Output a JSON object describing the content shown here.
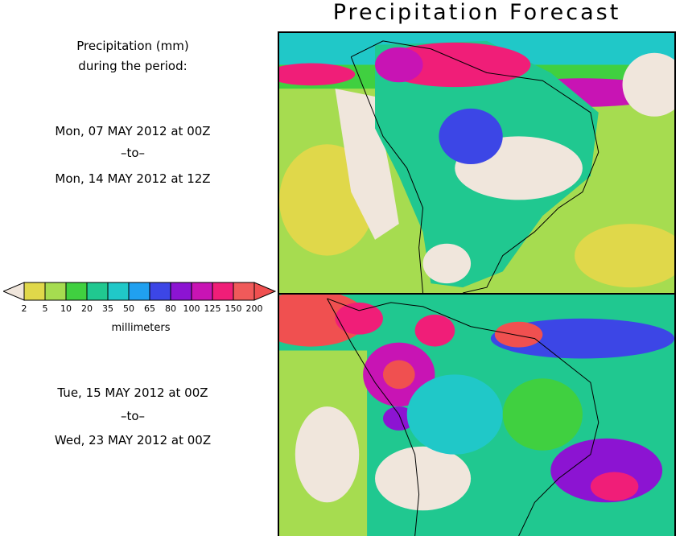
{
  "header": {
    "title": "Precipitation Forecast"
  },
  "description": {
    "line1": "Precipitation (mm)",
    "line2": "during the period:"
  },
  "period_1": {
    "start": "Mon, 07 MAY 2012 at 00Z",
    "sep": "–to–",
    "end": "Mon, 14 MAY 2012 at 12Z"
  },
  "period_2": {
    "start": "Tue, 15 MAY 2012 at 00Z",
    "sep": "–to–",
    "end": "Wed, 23 MAY 2012 at 00Z"
  },
  "legend": {
    "unit": "millimeters",
    "thresholds": [
      "2",
      "5",
      "10",
      "20",
      "35",
      "50",
      "65",
      "80",
      "100",
      "125",
      "150",
      "200"
    ],
    "colors": {
      "below": "#f0e6dc",
      "bins": [
        "#e0d84a",
        "#a6dc50",
        "#40d040",
        "#20c890",
        "#20c8c8",
        "#20a0f0",
        "#3c46e6",
        "#8c14d2",
        "#c814b4",
        "#f01e78",
        "#f05a5a"
      ],
      "above": "#f05050"
    }
  },
  "maps": {
    "land_dry": "#f0e6dc",
    "ocean_base": "#20c890",
    "coast": "#000000"
  }
}
